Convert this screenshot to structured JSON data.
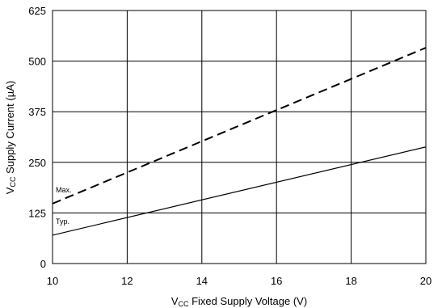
{
  "chart_data": {
    "type": "line",
    "title": "",
    "xlabel": {
      "main": "V",
      "sub": "CC",
      "rest": " Fixed Supply Voltage (V)"
    },
    "ylabel": {
      "main": "V",
      "sub": "CC",
      "rest": " Supply Current (µA)"
    },
    "xlim": [
      10,
      20
    ],
    "ylim": [
      0,
      625
    ],
    "xticks": [
      "10",
      "12",
      "14",
      "16",
      "18",
      "20"
    ],
    "yticks": [
      "0",
      "125",
      "250",
      "375",
      "500",
      "625"
    ],
    "grid": true,
    "series": [
      {
        "name": "Max.",
        "style": "dashed",
        "x": [
          10,
          20
        ],
        "y": [
          148,
          533
        ]
      },
      {
        "name": "Typ.",
        "style": "solid",
        "x": [
          10,
          20
        ],
        "y": [
          70,
          288
        ]
      }
    ]
  }
}
